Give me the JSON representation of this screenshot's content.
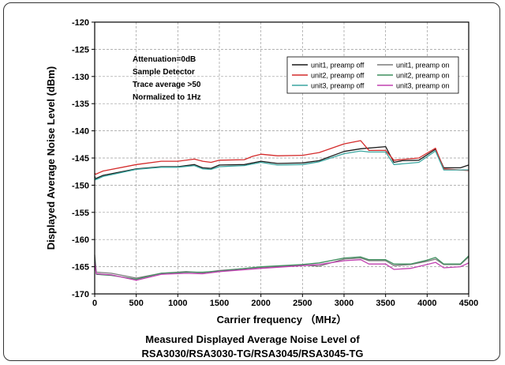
{
  "chart_data": {
    "type": "line",
    "xlabel": "Carrier frequency （MHz）",
    "ylabel": "Displayed Average Noise Level (dBm)",
    "xlim": [
      0,
      4500
    ],
    "ylim": [
      -170,
      -120
    ],
    "xticks": [
      0,
      500,
      1000,
      1500,
      2000,
      2500,
      3000,
      3500,
      4000,
      4500
    ],
    "yticks": [
      -120,
      -125,
      -130,
      -135,
      -140,
      -145,
      -150,
      -155,
      -160,
      -165,
      -170
    ],
    "grid": true,
    "annotation": [
      "Attenuation=0dB",
      "Sample Detector",
      "Trace average >50",
      "Normalized to 1Hz"
    ],
    "legend_position": "top-right",
    "series": [
      {
        "name": "unit1, preamp off",
        "color": "#1a1a1a",
        "points": [
          [
            0,
            -148.4
          ],
          [
            10,
            -148.8
          ],
          [
            100,
            -148.2
          ],
          [
            500,
            -147.0
          ],
          [
            800,
            -146.6
          ],
          [
            1000,
            -146.6
          ],
          [
            1200,
            -146.2
          ],
          [
            1300,
            -146.8
          ],
          [
            1400,
            -146.9
          ],
          [
            1500,
            -146.3
          ],
          [
            1800,
            -146.2
          ],
          [
            2000,
            -145.6
          ],
          [
            2200,
            -146.0
          ],
          [
            2500,
            -145.9
          ],
          [
            2700,
            -145.5
          ],
          [
            3000,
            -143.8
          ],
          [
            3200,
            -143.3
          ],
          [
            3500,
            -142.9
          ],
          [
            3600,
            -145.8
          ],
          [
            3700,
            -145.5
          ],
          [
            3900,
            -145.4
          ],
          [
            4100,
            -143.4
          ],
          [
            4200,
            -146.8
          ],
          [
            4400,
            -146.8
          ],
          [
            4500,
            -146.3
          ]
        ]
      },
      {
        "name": "unit1, preamp on",
        "color": "#7a7a7a",
        "points": [
          [
            0,
            -162.8
          ],
          [
            20,
            -166.0
          ],
          [
            200,
            -166.2
          ],
          [
            500,
            -167.1
          ],
          [
            800,
            -166.2
          ],
          [
            1100,
            -165.9
          ],
          [
            1300,
            -166.1
          ],
          [
            1500,
            -165.7
          ],
          [
            2000,
            -165.1
          ],
          [
            2500,
            -164.7
          ],
          [
            2700,
            -164.9
          ],
          [
            3000,
            -163.6
          ],
          [
            3200,
            -163.4
          ],
          [
            3300,
            -163.9
          ],
          [
            3500,
            -163.9
          ],
          [
            3600,
            -164.8
          ],
          [
            3800,
            -164.6
          ],
          [
            4000,
            -164.0
          ],
          [
            4100,
            -163.6
          ],
          [
            4200,
            -164.6
          ],
          [
            4400,
            -164.6
          ],
          [
            4500,
            -163.2
          ]
        ]
      },
      {
        "name": "unit2, preamp off",
        "color": "#d42b2b",
        "points": [
          [
            0,
            -147.8
          ],
          [
            10,
            -148.0
          ],
          [
            100,
            -147.4
          ],
          [
            500,
            -146.2
          ],
          [
            800,
            -145.6
          ],
          [
            1000,
            -145.6
          ],
          [
            1200,
            -145.2
          ],
          [
            1300,
            -145.6
          ],
          [
            1400,
            -145.8
          ],
          [
            1500,
            -145.4
          ],
          [
            1800,
            -145.3
          ],
          [
            1900,
            -144.7
          ],
          [
            2000,
            -144.3
          ],
          [
            2200,
            -144.6
          ],
          [
            2500,
            -144.5
          ],
          [
            2700,
            -144.0
          ],
          [
            3000,
            -142.4
          ],
          [
            3200,
            -141.8
          ],
          [
            3300,
            -143.6
          ],
          [
            3500,
            -143.6
          ],
          [
            3600,
            -145.4
          ],
          [
            3900,
            -145.0
          ],
          [
            4100,
            -143.2
          ],
          [
            4200,
            -147.0
          ],
          [
            4500,
            -147.3
          ]
        ]
      },
      {
        "name": "unit2, preamp on",
        "color": "#3f8f5f",
        "points": [
          [
            0,
            -163.8
          ],
          [
            20,
            -166.4
          ],
          [
            200,
            -166.6
          ],
          [
            500,
            -167.3
          ],
          [
            800,
            -166.2
          ],
          [
            1100,
            -166.0
          ],
          [
            1300,
            -166.0
          ],
          [
            1500,
            -165.8
          ],
          [
            2000,
            -165.0
          ],
          [
            2500,
            -164.6
          ],
          [
            2700,
            -164.3
          ],
          [
            3000,
            -163.4
          ],
          [
            3200,
            -163.2
          ],
          [
            3300,
            -163.7
          ],
          [
            3500,
            -163.7
          ],
          [
            3600,
            -164.5
          ],
          [
            3800,
            -164.5
          ],
          [
            4000,
            -163.8
          ],
          [
            4100,
            -163.3
          ],
          [
            4200,
            -164.5
          ],
          [
            4400,
            -164.5
          ],
          [
            4500,
            -163.0
          ]
        ]
      },
      {
        "name": "unit3, preamp off",
        "color": "#3aa6a0",
        "points": [
          [
            0,
            -148.6
          ],
          [
            10,
            -149.0
          ],
          [
            100,
            -148.4
          ],
          [
            500,
            -147.1
          ],
          [
            800,
            -146.7
          ],
          [
            1000,
            -146.7
          ],
          [
            1200,
            -146.4
          ],
          [
            1300,
            -147.0
          ],
          [
            1400,
            -147.1
          ],
          [
            1500,
            -146.6
          ],
          [
            1800,
            -146.4
          ],
          [
            2000,
            -145.8
          ],
          [
            2200,
            -146.3
          ],
          [
            2500,
            -146.2
          ],
          [
            2700,
            -145.7
          ],
          [
            3000,
            -144.2
          ],
          [
            3200,
            -143.7
          ],
          [
            3300,
            -143.9
          ],
          [
            3500,
            -143.9
          ],
          [
            3600,
            -146.2
          ],
          [
            3900,
            -145.8
          ],
          [
            4100,
            -143.7
          ],
          [
            4200,
            -147.2
          ],
          [
            4500,
            -147.2
          ]
        ]
      },
      {
        "name": "unit3, preamp on",
        "color": "#c040b0",
        "points": [
          [
            0,
            -164.2
          ],
          [
            20,
            -166.3
          ],
          [
            200,
            -166.5
          ],
          [
            500,
            -167.5
          ],
          [
            800,
            -166.4
          ],
          [
            1100,
            -166.2
          ],
          [
            1300,
            -166.3
          ],
          [
            1500,
            -165.9
          ],
          [
            2000,
            -165.3
          ],
          [
            2500,
            -164.8
          ],
          [
            2700,
            -164.6
          ],
          [
            3000,
            -163.9
          ],
          [
            3200,
            -163.7
          ],
          [
            3300,
            -164.5
          ],
          [
            3500,
            -164.5
          ],
          [
            3600,
            -165.5
          ],
          [
            3800,
            -165.3
          ],
          [
            4000,
            -164.6
          ],
          [
            4100,
            -164.2
          ],
          [
            4200,
            -165.2
          ],
          [
            4400,
            -165.0
          ],
          [
            4500,
            -164.3
          ]
        ]
      }
    ]
  },
  "caption": {
    "line1": "Measured Displayed Average Noise Level of",
    "line2": "RSA3030/RSA3030-TG/RSA3045/RSA3045-TG"
  }
}
